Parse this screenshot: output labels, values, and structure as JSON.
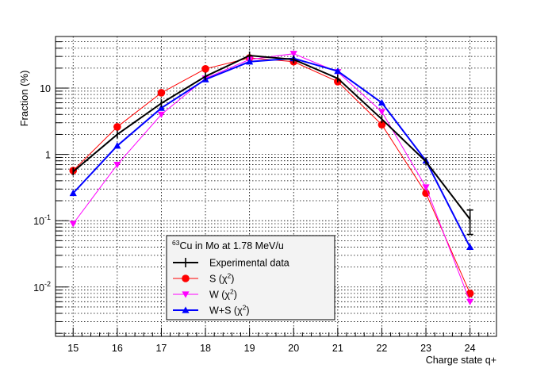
{
  "chart_data": {
    "type": "line",
    "ylabel": "Fraction (%)",
    "xlabel": "Charge state q+",
    "yscale": "log",
    "xlim": [
      14.6,
      24.6
    ],
    "ylim": [
      0.0018,
      60
    ],
    "grid": true,
    "x_ticks": [
      "15",
      "16",
      "17",
      "18",
      "19",
      "20",
      "21",
      "22",
      "23",
      "24"
    ],
    "y_ticks": [
      {
        "value": 0.01,
        "base": "10",
        "exp": "-2"
      },
      {
        "value": 0.1,
        "base": "10",
        "exp": "-1"
      },
      {
        "value": 1,
        "label": "1"
      },
      {
        "value": 10,
        "label": "10"
      }
    ],
    "legend": {
      "placement": "center-bottom",
      "title_superscript": "63",
      "title": "Cu in Mo at 1.78 MeV/u"
    },
    "x": [
      15,
      16,
      17,
      18,
      19,
      20,
      21,
      22,
      23,
      24
    ],
    "series": [
      {
        "name": "Experimental data",
        "legend_main": "Experimental data",
        "legend_sup": "",
        "legend_tail": "",
        "color": "#000000",
        "marker": "errorbar",
        "values": [
          0.55,
          2.0,
          5.9,
          15.0,
          31.0,
          27.0,
          14.0,
          3.4,
          0.78,
          0.105
        ],
        "err_low": [
          null,
          null,
          null,
          null,
          null,
          null,
          null,
          null,
          null,
          0.062
        ],
        "err_high": [
          null,
          null,
          null,
          null,
          null,
          null,
          null,
          null,
          null,
          0.145
        ]
      },
      {
        "name": "S (χ2)",
        "legend_main": "S (χ",
        "legend_sup": "2",
        "legend_tail": ")",
        "color": "#ff0000",
        "marker": "circle",
        "values": [
          0.57,
          2.6,
          8.5,
          19.5,
          28.5,
          25.0,
          12.5,
          2.8,
          0.26,
          0.008
        ]
      },
      {
        "name": "W (χ2)",
        "legend_main": "W (χ",
        "legend_sup": "2",
        "legend_tail": ")",
        "color": "#ff00ff",
        "marker": "triangle-down",
        "values": [
          0.09,
          0.7,
          4.0,
          14.0,
          27.0,
          33.0,
          17.5,
          4.4,
          0.32,
          0.006
        ]
      },
      {
        "name": "W+S (χ2)",
        "legend_main": "W+S (χ",
        "legend_sup": "2",
        "legend_tail": ")",
        "color": "#0000ff",
        "marker": "triangle-up",
        "values": [
          0.26,
          1.35,
          5.0,
          13.5,
          25.0,
          28.0,
          18.0,
          6.0,
          0.8,
          0.04
        ]
      }
    ]
  }
}
